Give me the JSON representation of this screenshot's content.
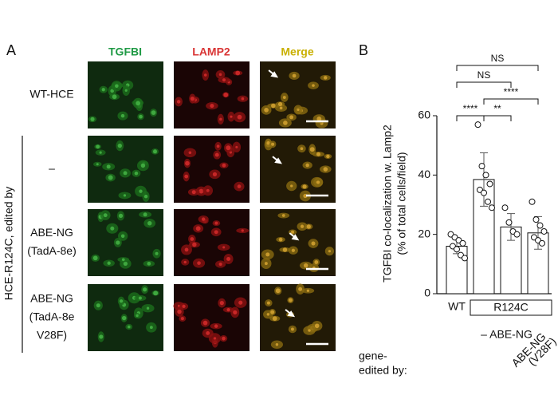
{
  "panel_a": {
    "label": "A",
    "columns": [
      "TGFBI",
      "LAMP2",
      "Merge"
    ],
    "rows": [
      [
        "WT-HCE"
      ],
      [
        "–"
      ],
      [
        "ABE-NG",
        "(TadA-8e)"
      ],
      [
        "ABE-NG",
        "(TadA-8e",
        "V28F)"
      ]
    ],
    "group_label": "HCE-R124C, edited by"
  },
  "chart_data": {
    "type": "bar",
    "panel_label": "B",
    "y_label": [
      "TGFBI co-localization w. Lamp2",
      "(% of total cells/field)"
    ],
    "categories": [
      "WT",
      null,
      null,
      null
    ],
    "group_label": "R124C",
    "edit_row_label": [
      "gene-",
      "edited by:"
    ],
    "edit_labels": [
      null,
      "–",
      "ABE-NG",
      [
        "ABE-NG",
        "(V28F)"
      ]
    ],
    "values": [
      16,
      38.5,
      22.5,
      20.5
    ],
    "errors": [
      2.5,
      9,
      4.5,
      5.5
    ],
    "points": [
      [
        20,
        19,
        18,
        17,
        16,
        15,
        13,
        12
      ],
      [
        57,
        43,
        40,
        37,
        35,
        34,
        31,
        29
      ],
      [
        29,
        24,
        21,
        20
      ],
      [
        31,
        25,
        23,
        21,
        19,
        18,
        17
      ]
    ],
    "ylim": [
      0,
      60
    ],
    "yticks": [
      0,
      20,
      40,
      60
    ],
    "comparisons": [
      {
        "pair": [
          0,
          1
        ],
        "label": "****"
      },
      {
        "pair": [
          1,
          2
        ],
        "label": "**"
      },
      {
        "pair": [
          1,
          3
        ],
        "label": "****"
      },
      {
        "pair": [
          0,
          2
        ],
        "label": "NS"
      },
      {
        "pair": [
          0,
          3
        ],
        "label": "NS"
      }
    ]
  }
}
